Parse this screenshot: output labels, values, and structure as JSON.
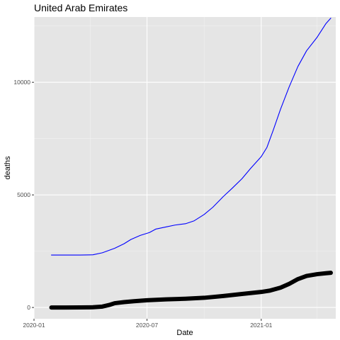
{
  "chart_data": {
    "type": "line",
    "title": "United Arab Emirates",
    "xlabel": "Date",
    "ylabel": "deaths",
    "xlim": [
      "2020-01-01",
      "2021-05-01"
    ],
    "ylim": [
      -500,
      12900
    ],
    "x_ticks": [
      {
        "value": "2020-01-01",
        "label": "2020-01"
      },
      {
        "value": "2020-07-01",
        "label": "2020-07"
      },
      {
        "value": "2021-01-01",
        "label": "2021-01"
      }
    ],
    "x_minor_ticks": [
      "2020-04-01",
      "2020-10-01",
      "2021-04-01"
    ],
    "y_ticks": [
      0,
      5000,
      10000
    ],
    "y_minor_ticks": [
      2500,
      7500,
      12500
    ],
    "grid": true,
    "background": "#e5e5e5",
    "series": [
      {
        "color": "#0000ff",
        "style": "thin",
        "points": [
          [
            "2020-01-29",
            2330
          ],
          [
            "2020-02-20",
            2330
          ],
          [
            "2020-03-15",
            2330
          ],
          [
            "2020-04-05",
            2340
          ],
          [
            "2020-04-20",
            2430
          ],
          [
            "2020-05-10",
            2630
          ],
          [
            "2020-05-25",
            2830
          ],
          [
            "2020-06-05",
            3020
          ],
          [
            "2020-06-20",
            3200
          ],
          [
            "2020-07-05",
            3330
          ],
          [
            "2020-07-15",
            3480
          ],
          [
            "2020-08-01",
            3580
          ],
          [
            "2020-08-15",
            3660
          ],
          [
            "2020-09-01",
            3720
          ],
          [
            "2020-09-15",
            3850
          ],
          [
            "2020-10-01",
            4130
          ],
          [
            "2020-10-15",
            4450
          ],
          [
            "2020-11-01",
            4930
          ],
          [
            "2020-11-15",
            5290
          ],
          [
            "2020-12-01",
            5720
          ],
          [
            "2020-12-15",
            6180
          ],
          [
            "2021-01-01",
            6700
          ],
          [
            "2021-01-10",
            7100
          ],
          [
            "2021-01-20",
            7850
          ],
          [
            "2021-02-01",
            8800
          ],
          [
            "2021-02-15",
            9800
          ],
          [
            "2021-03-01",
            10700
          ],
          [
            "2021-03-15",
            11400
          ],
          [
            "2021-04-01",
            12000
          ],
          [
            "2021-04-15",
            12600
          ],
          [
            "2021-04-23",
            12850
          ]
        ]
      },
      {
        "color": "#000000",
        "style": "thick",
        "points": [
          [
            "2020-01-29",
            0
          ],
          [
            "2020-02-20",
            0
          ],
          [
            "2020-03-15",
            2
          ],
          [
            "2020-04-05",
            10
          ],
          [
            "2020-04-20",
            40
          ],
          [
            "2020-05-01",
            110
          ],
          [
            "2020-05-10",
            190
          ],
          [
            "2020-05-25",
            240
          ],
          [
            "2020-06-10",
            280
          ],
          [
            "2020-07-01",
            320
          ],
          [
            "2020-08-01",
            360
          ],
          [
            "2020-09-01",
            390
          ],
          [
            "2020-10-01",
            430
          ],
          [
            "2020-11-01",
            510
          ],
          [
            "2020-12-01",
            600
          ],
          [
            "2021-01-01",
            690
          ],
          [
            "2021-01-15",
            750
          ],
          [
            "2021-02-01",
            880
          ],
          [
            "2021-02-15",
            1050
          ],
          [
            "2021-03-01",
            1260
          ],
          [
            "2021-03-15",
            1400
          ],
          [
            "2021-04-01",
            1480
          ],
          [
            "2021-04-15",
            1520
          ],
          [
            "2021-04-23",
            1540
          ]
        ]
      }
    ]
  }
}
